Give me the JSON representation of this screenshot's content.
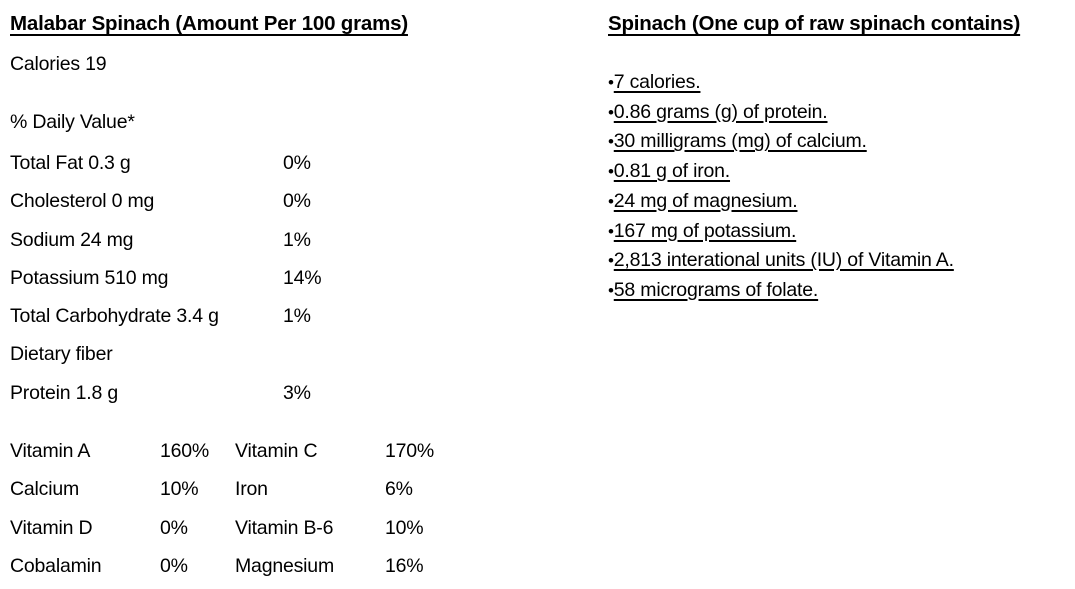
{
  "left": {
    "title": "Malabar Spinach (Amount Per 100 grams)",
    "calories": "Calories 19",
    "daily_value_heading": "% Daily Value*",
    "rows": [
      {
        "label": "Total Fat 0.3 g",
        "value": "0%"
      },
      {
        "label": "Cholesterol 0 mg",
        "value": "0%"
      },
      {
        "label": "Sodium 24 mg",
        "value": "1%"
      },
      {
        "label": "Potassium 510 mg",
        "value": "14%"
      },
      {
        "label": "Total Carbohydrate 3.4 g",
        "value": "1%"
      },
      {
        "label": "Dietary fiber",
        "value": ""
      },
      {
        "label": "Protein 1.8 g",
        "value": "3%"
      }
    ],
    "vitamins": [
      {
        "label": "Vitamin A",
        "value": "160%"
      },
      {
        "label": "Vitamin C",
        "value": "170%"
      },
      {
        "label": "Calcium",
        "value": "10%"
      },
      {
        "label": "Iron",
        "value": "6%"
      },
      {
        "label": "Vitamin D",
        "value": "0%"
      },
      {
        "label": "Vitamin B-6",
        "value": "10%"
      },
      {
        "label": "Cobalamin",
        "value": "0%"
      },
      {
        "label": "Magnesium",
        "value": "16%"
      }
    ]
  },
  "right": {
    "title": "Spinach (One cup of raw spinach contains)",
    "bullet": "•",
    "items": [
      "7 calories.",
      "0.86 grams (g) of protein.",
      "30 milligrams (mg) of calcium.",
      "0.81 g of iron.",
      "24 mg of magnesium.",
      "167 mg of potassium.",
      "2,813 interational units (IU) of Vitamin A.",
      "58 micrograms of folate."
    ]
  },
  "colors": {
    "text": "#000000",
    "background": "#ffffff"
  }
}
